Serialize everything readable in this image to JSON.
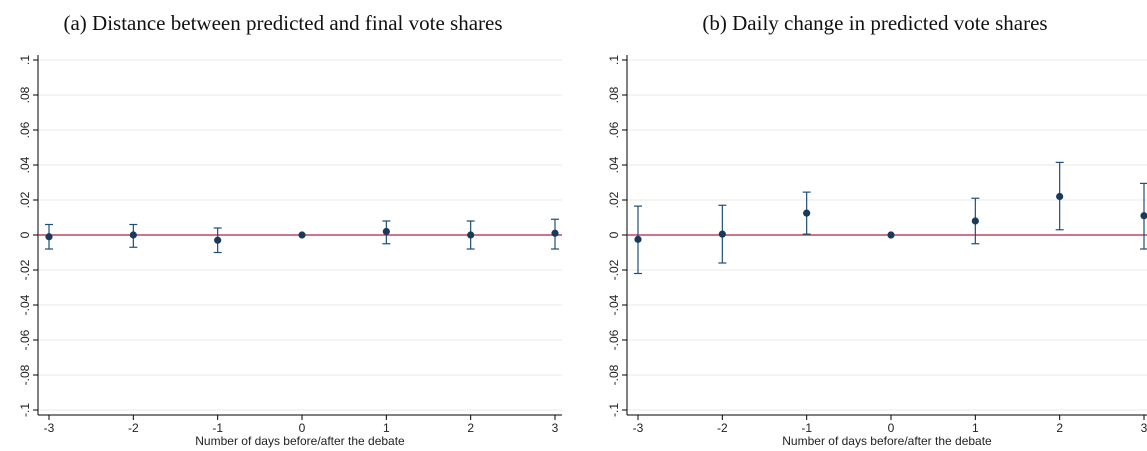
{
  "colors": {
    "marker": "#1a3a5c",
    "error_bar": "#1f4e79",
    "reference_line": "#b22245",
    "grid": "#e8e8e8",
    "axis": "#000000"
  },
  "chart_data": [
    {
      "type": "scatter",
      "title": "(a) Distance between predicted and final vote shares",
      "xlabel": "Number of days before/after the debate",
      "ylabel": "",
      "x_ticks": [
        "-3",
        "-2",
        "-1",
        "0",
        "1",
        "2",
        "3"
      ],
      "y_ticks": [
        "-.1",
        "-.08",
        "-.06",
        "-.04",
        "-.02",
        "0",
        ".02",
        ".04",
        ".06",
        ".08",
        ".1"
      ],
      "xlim": [
        -3,
        3
      ],
      "ylim": [
        -0.1,
        0.1
      ],
      "reference_line_y": 0,
      "grid": true,
      "points": [
        {
          "x": -3,
          "y": -0.001,
          "lo": -0.008,
          "hi": 0.006
        },
        {
          "x": -2,
          "y": 0.0,
          "lo": -0.007,
          "hi": 0.006
        },
        {
          "x": -1,
          "y": -0.003,
          "lo": -0.01,
          "hi": 0.004
        },
        {
          "x": 0,
          "y": 0.0,
          "lo": 0.0,
          "hi": 0.0
        },
        {
          "x": 1,
          "y": 0.002,
          "lo": -0.005,
          "hi": 0.008
        },
        {
          "x": 2,
          "y": 0.0,
          "lo": -0.008,
          "hi": 0.008
        },
        {
          "x": 3,
          "y": 0.001,
          "lo": -0.008,
          "hi": 0.009
        }
      ]
    },
    {
      "type": "scatter",
      "title": "(b) Daily change in predicted vote shares",
      "xlabel": "Number of days before/after the debate",
      "ylabel": "",
      "x_ticks": [
        "-3",
        "-2",
        "-1",
        "0",
        "1",
        "2",
        "3"
      ],
      "y_ticks": [
        "-.1",
        "-.08",
        "-.06",
        "-.04",
        "-.02",
        "0",
        ".02",
        ".04",
        ".06",
        ".08",
        ".1"
      ],
      "xlim": [
        -3,
        3
      ],
      "ylim": [
        -0.1,
        0.1
      ],
      "reference_line_y": 0,
      "grid": true,
      "points": [
        {
          "x": -3,
          "y": -0.0025,
          "lo": -0.022,
          "hi": 0.0165
        },
        {
          "x": -2,
          "y": 0.0005,
          "lo": -0.016,
          "hi": 0.017
        },
        {
          "x": -1,
          "y": 0.0125,
          "lo": 0.0005,
          "hi": 0.0245
        },
        {
          "x": 0,
          "y": 0.0,
          "lo": 0.0,
          "hi": 0.0
        },
        {
          "x": 1,
          "y": 0.008,
          "lo": -0.005,
          "hi": 0.021
        },
        {
          "x": 2,
          "y": 0.022,
          "lo": 0.003,
          "hi": 0.0415
        },
        {
          "x": 3,
          "y": 0.011,
          "lo": -0.008,
          "hi": 0.0295
        }
      ]
    }
  ]
}
